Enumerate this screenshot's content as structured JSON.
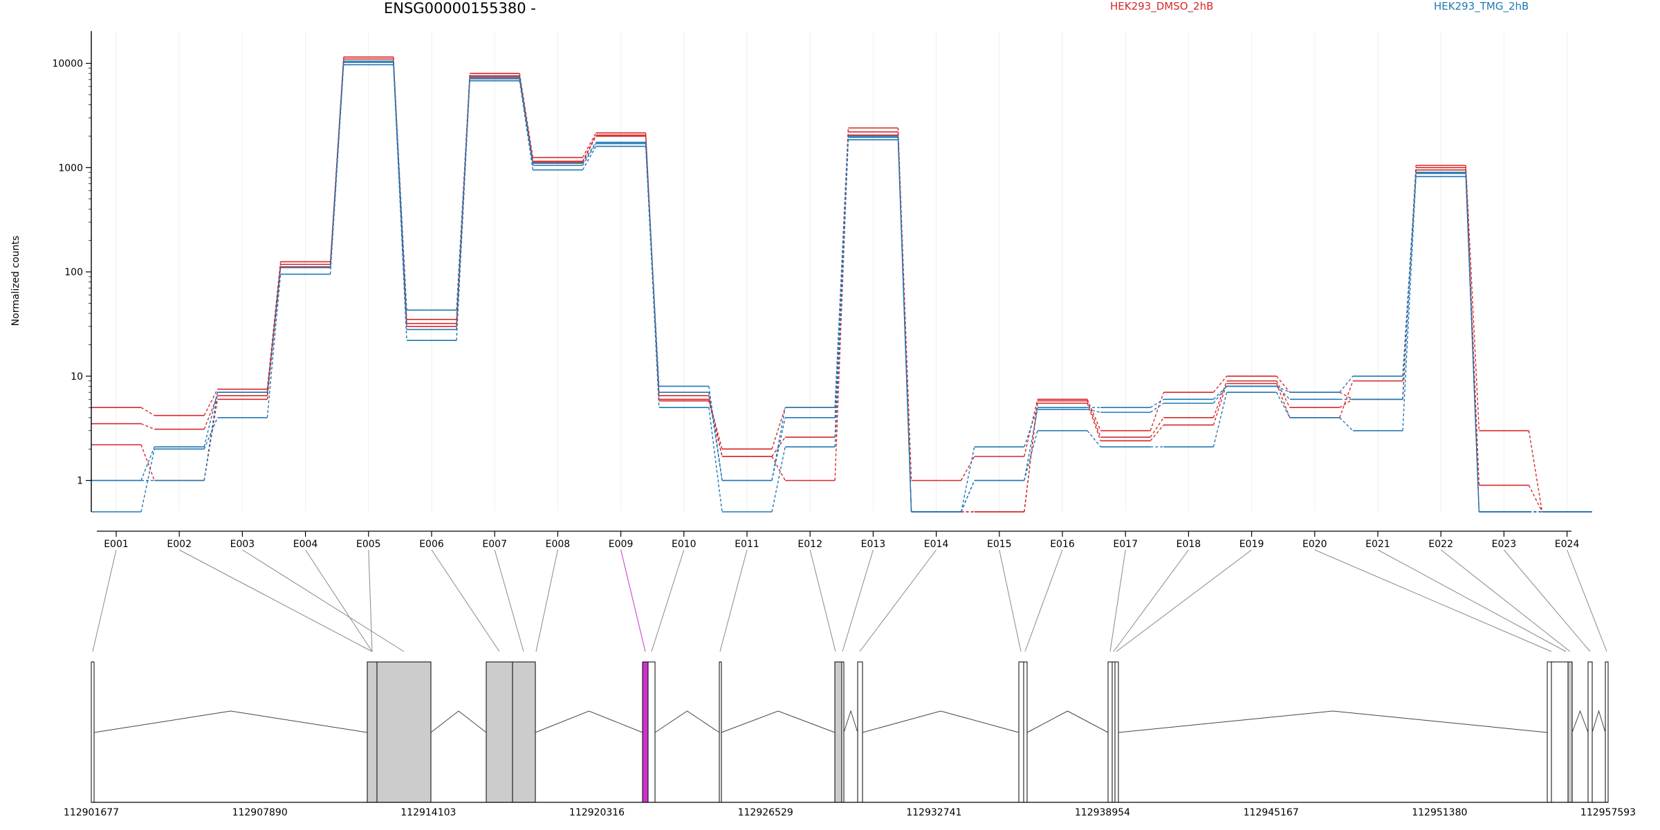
{
  "title": "ENSG00000155380 -",
  "legend": [
    {
      "label": "HEK293_DMSO_2hB",
      "color": "#d62728"
    },
    {
      "label": "HEK293_TMG_2hB",
      "color": "#1f77b4"
    }
  ],
  "chart_data": {
    "type": "line",
    "ylabel": "Normalized counts",
    "yscale": "log",
    "ylim": [
      0.5,
      15000
    ],
    "yticks": [
      "1",
      "10",
      "100",
      "1000",
      "10000"
    ],
    "categories": [
      "E001",
      "E002",
      "E003",
      "E004",
      "E005",
      "E006",
      "E007",
      "E008",
      "E009",
      "E010",
      "E011",
      "E012",
      "E013",
      "E014",
      "E015",
      "E016",
      "E017",
      "E018",
      "E019",
      "E020",
      "E021",
      "E022",
      "E023",
      "E024"
    ],
    "colors": {
      "dmso": "#d62728",
      "tmg": "#1f77b4",
      "highlight": "#cc33cc"
    },
    "series": [
      {
        "group": "dmso",
        "values": [
          5.0,
          4.2,
          7.5,
          125,
          11500,
          35,
          8000,
          1250,
          2150,
          6.0,
          2.0,
          5.0,
          2400,
          1.0,
          1.7,
          6.0,
          3.0,
          7.0,
          10.0,
          7.0,
          6.0,
          1050,
          3.0,
          0.5
        ]
      },
      {
        "group": "dmso",
        "values": [
          3.5,
          3.1,
          6.5,
          118,
          11000,
          32,
          7600,
          1150,
          2050,
          6.5,
          1.7,
          2.6,
          2200,
          0.5,
          0.5,
          5.8,
          2.6,
          4.0,
          9.0,
          5.0,
          6.0,
          1000,
          0.9,
          0.5
        ]
      },
      {
        "group": "dmso",
        "values": [
          2.2,
          1.0,
          6.0,
          112,
          10500,
          30,
          7300,
          1120,
          2000,
          5.8,
          1.7,
          1.0,
          2050,
          0.5,
          0.5,
          5.5,
          2.4,
          3.4,
          8.5,
          4.0,
          9.0,
          950,
          0.5,
          0.5
        ]
      },
      {
        "group": "tmg",
        "values": [
          1.0,
          2.1,
          7.0,
          110,
          10500,
          43,
          7500,
          1050,
          1700,
          8.0,
          1.0,
          5.0,
          2000,
          0.5,
          2.1,
          5.0,
          5.0,
          6.0,
          8.0,
          7.0,
          10.0,
          900,
          0.5,
          0.5
        ]
      },
      {
        "group": "tmg",
        "values": [
          0.5,
          2.0,
          4.0,
          95,
          9700,
          22,
          6800,
          950,
          1600,
          5.0,
          0.5,
          2.1,
          1850,
          0.5,
          1.0,
          3.0,
          2.1,
          2.1,
          7.0,
          4.0,
          3.0,
          820,
          0.5,
          0.5
        ]
      },
      {
        "group": "tmg",
        "values": [
          1.0,
          1.0,
          7.0,
          110,
          10200,
          28,
          7100,
          1100,
          1750,
          7.0,
          1.0,
          4.0,
          1950,
          0.5,
          1.0,
          4.8,
          4.5,
          5.5,
          8.0,
          6.0,
          6.0,
          880,
          0.5,
          0.5
        ]
      }
    ],
    "gene_model": {
      "coordinate_ticks": [
        "112901677",
        "112907890",
        "112914103",
        "112920316",
        "112926529",
        "112932741",
        "112938954",
        "112945167",
        "112951380",
        "112957593"
      ],
      "highlighted_exon": "E009"
    }
  }
}
